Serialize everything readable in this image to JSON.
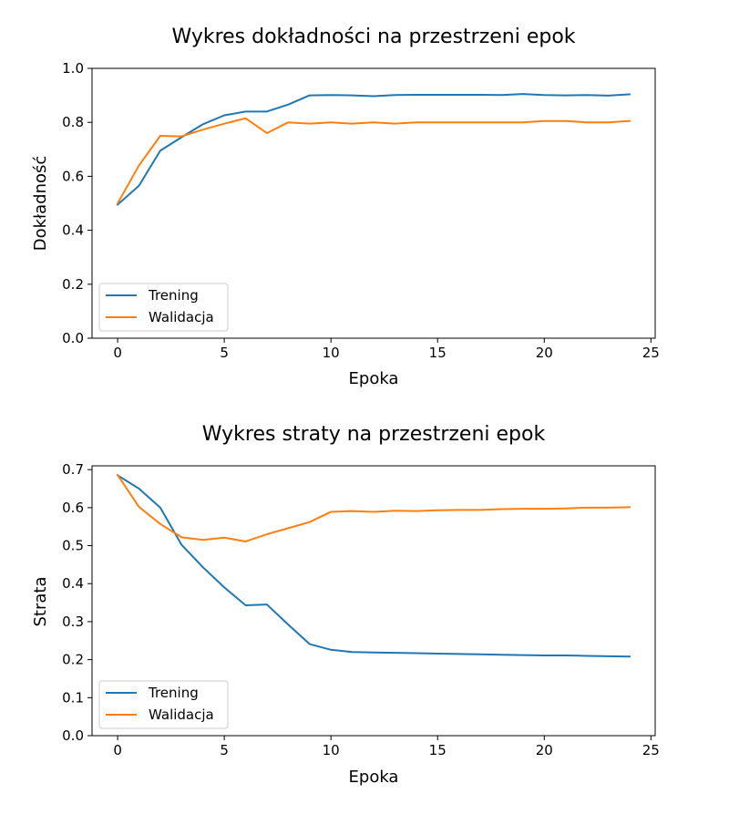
{
  "chart_data": [
    {
      "type": "line",
      "title": "Wykres dokładności na przestrzeni epok",
      "xlabel": "Epoka",
      "ylabel": "Dokładność",
      "xlim": [
        -1.2,
        25.2
      ],
      "ylim": [
        0.0,
        1.0
      ],
      "xticks": [
        0,
        5,
        10,
        15,
        20,
        25
      ],
      "xtick_labels": [
        "0",
        "5",
        "10",
        "15",
        "20",
        "25"
      ],
      "yticks": [
        0.0,
        0.2,
        0.4,
        0.6,
        0.8,
        1.0
      ],
      "ytick_labels": [
        "0.0",
        "0.2",
        "0.4",
        "0.6",
        "0.8",
        "1.0"
      ],
      "grid": false,
      "legend_position": "lower-left",
      "x": [
        0,
        1,
        2,
        3,
        4,
        5,
        6,
        7,
        8,
        9,
        10,
        11,
        12,
        13,
        14,
        15,
        16,
        17,
        18,
        19,
        20,
        21,
        22,
        23,
        24
      ],
      "series": [
        {
          "name": "Trening",
          "color": "#1f77b4",
          "values": [
            0.495,
            0.565,
            0.695,
            0.745,
            0.793,
            0.826,
            0.84,
            0.84,
            0.866,
            0.9,
            0.901,
            0.9,
            0.897,
            0.901,
            0.902,
            0.902,
            0.902,
            0.902,
            0.901,
            0.905,
            0.901,
            0.9,
            0.901,
            0.899,
            0.904
          ]
        },
        {
          "name": "Walidacja",
          "color": "#ff7f0e",
          "values": [
            0.5,
            0.64,
            0.75,
            0.748,
            0.773,
            0.795,
            0.815,
            0.76,
            0.8,
            0.795,
            0.8,
            0.795,
            0.8,
            0.795,
            0.8,
            0.8,
            0.8,
            0.8,
            0.8,
            0.8,
            0.805,
            0.805,
            0.8,
            0.8,
            0.805
          ]
        }
      ]
    },
    {
      "type": "line",
      "title": "Wykres straty na przestrzeni epok",
      "xlabel": "Epoka",
      "ylabel": "Strata",
      "xlim": [
        -1.2,
        25.2
      ],
      "ylim": [
        0.0,
        0.71
      ],
      "xticks": [
        0,
        5,
        10,
        15,
        20,
        25
      ],
      "xtick_labels": [
        "0",
        "5",
        "10",
        "15",
        "20",
        "25"
      ],
      "yticks": [
        0.0,
        0.1,
        0.2,
        0.3,
        0.4,
        0.5,
        0.6,
        0.7
      ],
      "ytick_labels": [
        "0.0",
        "0.1",
        "0.2",
        "0.3",
        "0.4",
        "0.5",
        "0.6",
        "0.7"
      ],
      "grid": false,
      "legend_position": "lower-left",
      "x": [
        0,
        1,
        2,
        3,
        4,
        5,
        6,
        7,
        8,
        9,
        10,
        11,
        12,
        13,
        14,
        15,
        16,
        17,
        18,
        19,
        20,
        21,
        22,
        23,
        24
      ],
      "series": [
        {
          "name": "Trening",
          "color": "#1f77b4",
          "values": [
            0.685,
            0.65,
            0.6,
            0.502,
            0.443,
            0.39,
            0.343,
            0.345,
            0.292,
            0.241,
            0.226,
            0.22,
            0.219,
            0.218,
            0.217,
            0.216,
            0.215,
            0.214,
            0.213,
            0.212,
            0.211,
            0.211,
            0.21,
            0.209,
            0.208
          ]
        },
        {
          "name": "Walidacja",
          "color": "#ff7f0e",
          "values": [
            0.686,
            0.602,
            0.557,
            0.522,
            0.515,
            0.521,
            0.511,
            0.53,
            0.546,
            0.562,
            0.589,
            0.591,
            0.589,
            0.592,
            0.591,
            0.593,
            0.594,
            0.594,
            0.596,
            0.597,
            0.597,
            0.598,
            0.6,
            0.6,
            0.601
          ]
        }
      ]
    }
  ]
}
